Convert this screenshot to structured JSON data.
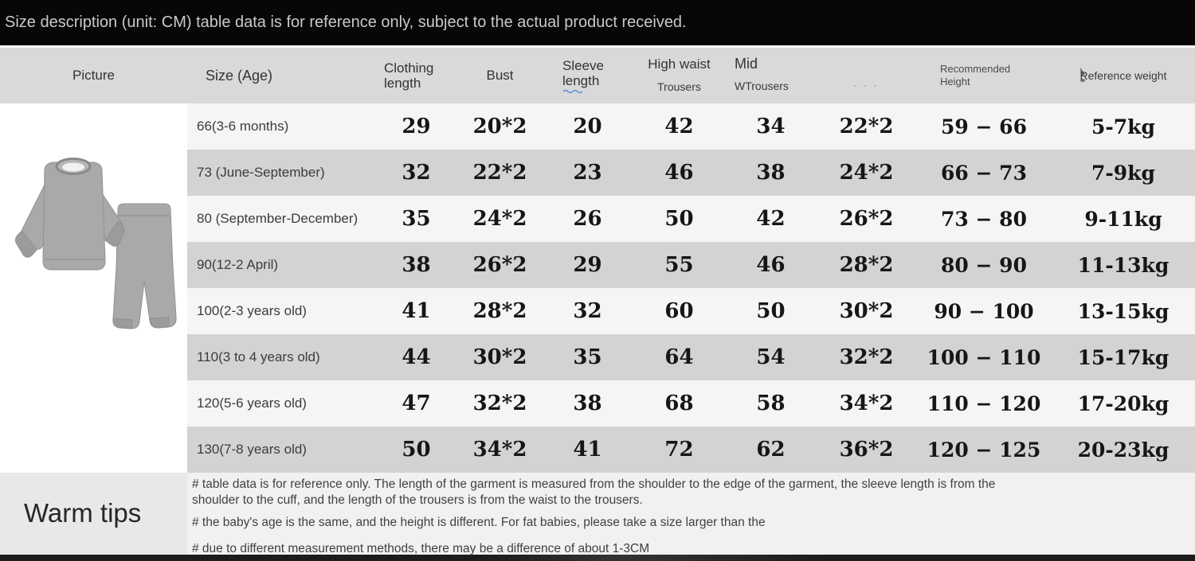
{
  "banner": {
    "text": "Size description (unit: CM) table data is for reference only, subject to the actual product received."
  },
  "table": {
    "headers": {
      "picture": "Picture",
      "size_age": "Size (Age)",
      "clothing_length_1": "Clothing",
      "clothing_length_2": "length",
      "bust": "Bust",
      "sleeve_length_1": "Sleeve",
      "sleeve_length_2": "length",
      "high_waist_1": "High waist",
      "high_waist_2": "Trousers",
      "mid_waist_1": "Mid",
      "mid_waist_2": "WTrousers",
      "unnamed_artifact": "- - -",
      "rec_height_1": "Recommended",
      "rec_height_2": "Height",
      "ref_weight": "Reference weight"
    },
    "rows": [
      {
        "label": "66(3-6 months)",
        "values": [
          "29",
          "20*2",
          "20",
          "42",
          "34",
          "22*2",
          "59 − 66",
          "5-7kg"
        ]
      },
      {
        "label": "73 (June-September)",
        "values": [
          "32",
          "22*2",
          "23",
          "46",
          "38",
          "24*2",
          "66 − 73",
          "7-9kg"
        ]
      },
      {
        "label": "80 (September-December)",
        "values": [
          "35",
          "24*2",
          "26",
          "50",
          "42",
          "26*2",
          "73 − 80",
          "9-11kg"
        ]
      },
      {
        "label": "90(12-2 April)",
        "values": [
          "38",
          "26*2",
          "29",
          "55",
          "46",
          "28*2",
          "80 − 90",
          "11-13kg"
        ]
      },
      {
        "label": "100(2-3 years old)",
        "values": [
          "41",
          "28*2",
          "32",
          "60",
          "50",
          "30*2",
          "90 − 100",
          "13-15kg"
        ]
      },
      {
        "label": "110(3 to 4 years old)",
        "values": [
          "44",
          "30*2",
          "35",
          "64",
          "54",
          "32*2",
          "100 − 110",
          "15-17kg"
        ]
      },
      {
        "label": "120(5-6 years old)",
        "values": [
          "47",
          "32*2",
          "38",
          "68",
          "58",
          "34*2",
          "110 − 120",
          "17-20kg"
        ]
      },
      {
        "label": "130(7-8 years old)",
        "values": [
          "50",
          "34*2",
          "41",
          "72",
          "62",
          "36*2",
          "120 − 125",
          "20-23kg"
        ]
      }
    ]
  },
  "warm_tips": {
    "title": "Warm tips",
    "notes": [
      "# table data is for reference only. The length of the garment is measured from the shoulder to the edge of the garment, the sleeve length is from the shoulder to the cuff, and the length of the trousers is from the waist to the trousers.",
      "# the baby's age is the same, and the height is different. For fat babies, please take a size larger than the",
      "# due to different measurement methods, there may be a difference of about 1-3CM"
    ]
  },
  "colors": {
    "banner_bg": "#070707",
    "banner_text": "#c9c9c9",
    "header_bg": "#d9d9d9",
    "row_light": "#f5f5f5",
    "row_dark": "#d3d3d3",
    "tips_left_bg": "#e8e8e8",
    "tips_right_bg": "#f1f1f1",
    "number_color": "#161616",
    "artifact_blue": "#5b8dd9"
  }
}
